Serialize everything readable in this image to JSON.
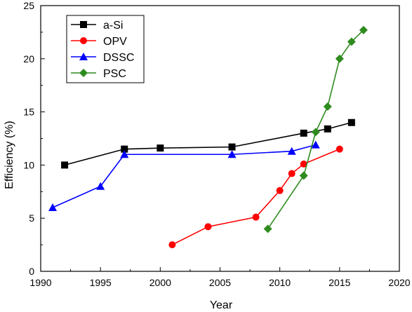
{
  "chart_data": {
    "type": "line",
    "xlabel": "Year",
    "ylabel": "Efficiency (%)",
    "xlim": [
      1990,
      2020
    ],
    "ylim": [
      0,
      25
    ],
    "x_ticks": [
      1990,
      1995,
      2000,
      2005,
      2010,
      2015,
      2020
    ],
    "y_ticks": [
      0,
      5,
      10,
      15,
      20,
      25
    ],
    "grid": false,
    "legend_position": "top-left",
    "series": [
      {
        "name": "a-Si",
        "color": "#000000",
        "marker": "square",
        "x": [
          1992,
          1997,
          2000,
          2006,
          2012,
          2014,
          2016
        ],
        "y": [
          10.0,
          11.5,
          11.6,
          11.7,
          13.0,
          13.4,
          14.0
        ]
      },
      {
        "name": "OPV",
        "color": "#ff0000",
        "marker": "circle",
        "x": [
          2001,
          2004,
          2008,
          2010,
          2011,
          2012,
          2015
        ],
        "y": [
          2.5,
          4.2,
          5.1,
          7.6,
          9.2,
          10.1,
          11.5
        ]
      },
      {
        "name": "DSSC",
        "color": "#0000ff",
        "marker": "triangle",
        "x": [
          1991,
          1995,
          1997,
          2006,
          2011,
          2013
        ],
        "y": [
          6.0,
          8.0,
          11.0,
          11.0,
          11.3,
          11.9
        ]
      },
      {
        "name": "PSC",
        "color": "#2e8b1e",
        "marker": "diamond",
        "x": [
          2009,
          2012,
          2013,
          2014,
          2015,
          2016,
          2017
        ],
        "y": [
          4.0,
          9.0,
          13.1,
          15.5,
          20.0,
          21.6,
          22.7
        ]
      }
    ]
  }
}
